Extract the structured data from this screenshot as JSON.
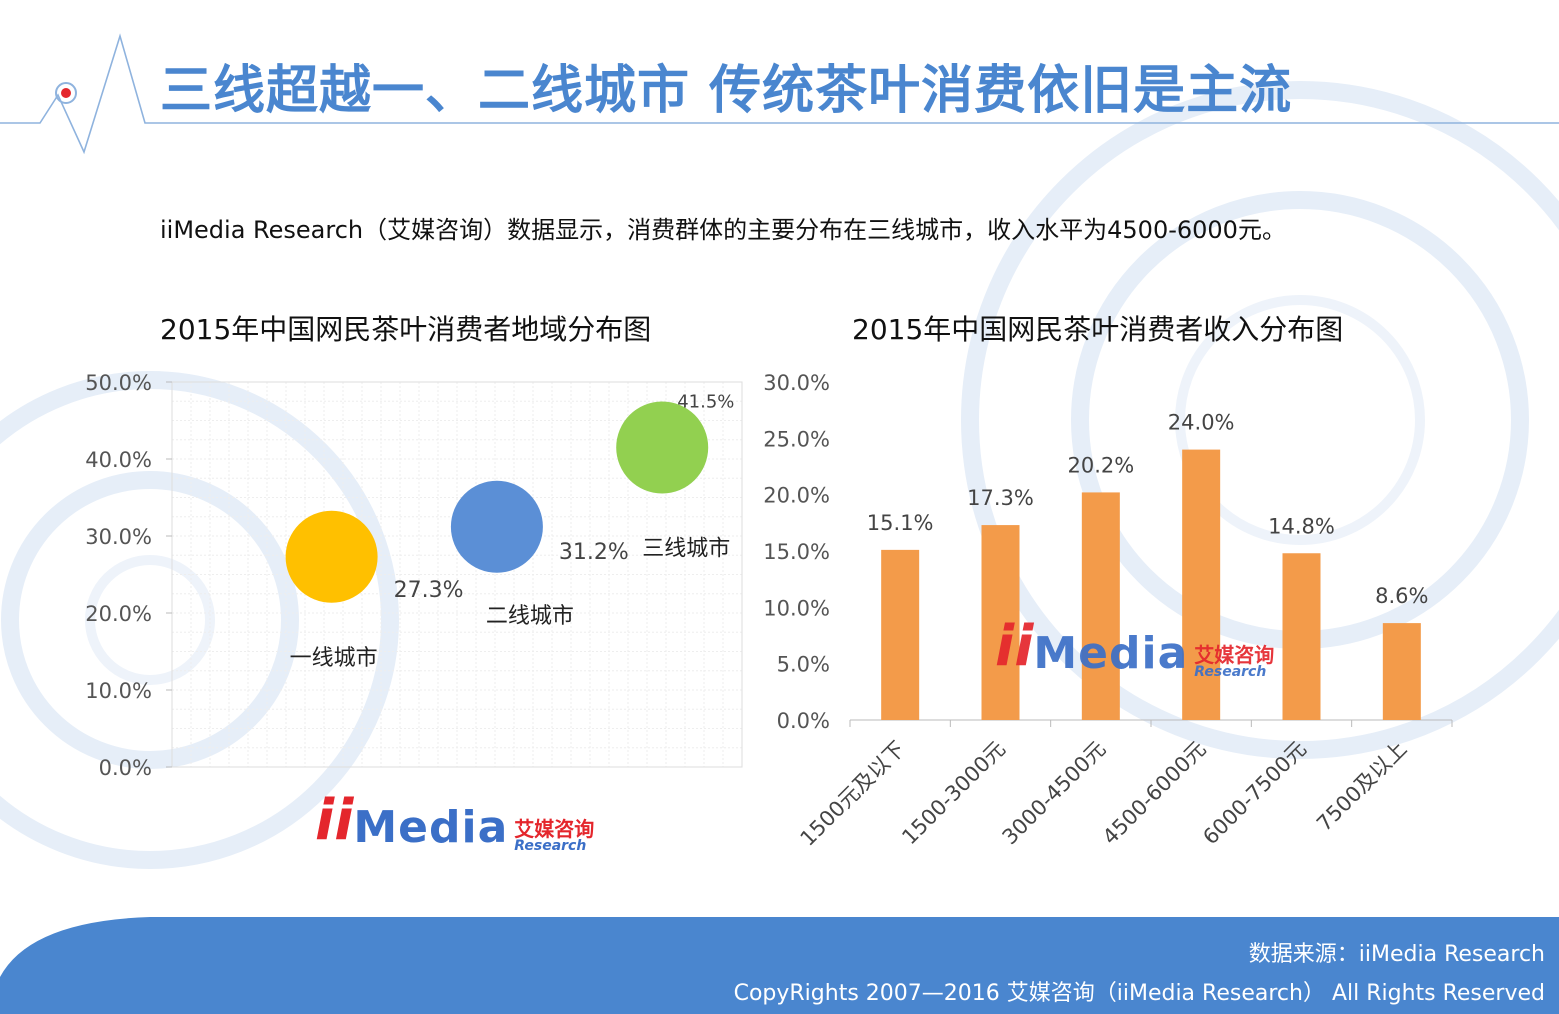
{
  "header": {
    "title": "三线超越一、二线城市  传统茶叶消费依旧是主流"
  },
  "intro": {
    "text": "iiMedia Research（艾媒咨询）数据显示，消费群体的主要分布在三线城市，收入水平为4500-6000元。"
  },
  "logo": {
    "ii": "ii",
    "media": "Media",
    "cn": "艾媒咨询",
    "en": "Research"
  },
  "footer": {
    "source": "数据来源：iiMedia Research",
    "copyright": "CopyRights 2007—2016 艾媒咨询（iiMedia Research） All Rights Reserved"
  },
  "colors": {
    "title": "#4a86cf",
    "footer_band": "#4a86cf",
    "bar": "#f39b4a",
    "bubble_tier1": "#ffc000",
    "bubble_tier2": "#5b8fd6",
    "bubble_tier3": "#92d050"
  },
  "chart_data": [
    {
      "type": "scatter",
      "title": "2015年中国网民茶叶消费者地域分布图",
      "ylim": [
        0,
        50
      ],
      "yticks": [
        "0.0%",
        "10.0%",
        "20.0%",
        "30.0%",
        "40.0%",
        "50.0%"
      ],
      "grid": true,
      "points": [
        {
          "name": "一线城市",
          "value": 27.3,
          "label": "27.3%",
          "color": "#ffc000"
        },
        {
          "name": "二线城市",
          "value": 31.2,
          "label": "31.2%",
          "color": "#5b8fd6"
        },
        {
          "name": "三线城市",
          "value": 41.5,
          "label": "41.5%",
          "color": "#92d050"
        }
      ]
    },
    {
      "type": "bar",
      "title": "2015年中国网民茶叶消费者收入分布图",
      "categories": [
        "1500元及以下",
        "1500-3000元",
        "3000-4500元",
        "4500-6000元",
        "6000-7500元",
        "7500及以上"
      ],
      "values": [
        15.1,
        17.3,
        20.2,
        24.0,
        14.8,
        8.6
      ],
      "value_labels": [
        "15.1%",
        "17.3%",
        "20.2%",
        "24.0%",
        "14.8%",
        "8.6%"
      ],
      "ylim": [
        0,
        30
      ],
      "yticks": [
        "0.0%",
        "5.0%",
        "10.0%",
        "15.0%",
        "20.0%",
        "25.0%",
        "30.0%"
      ],
      "grid": false,
      "color": "#f39b4a"
    }
  ]
}
